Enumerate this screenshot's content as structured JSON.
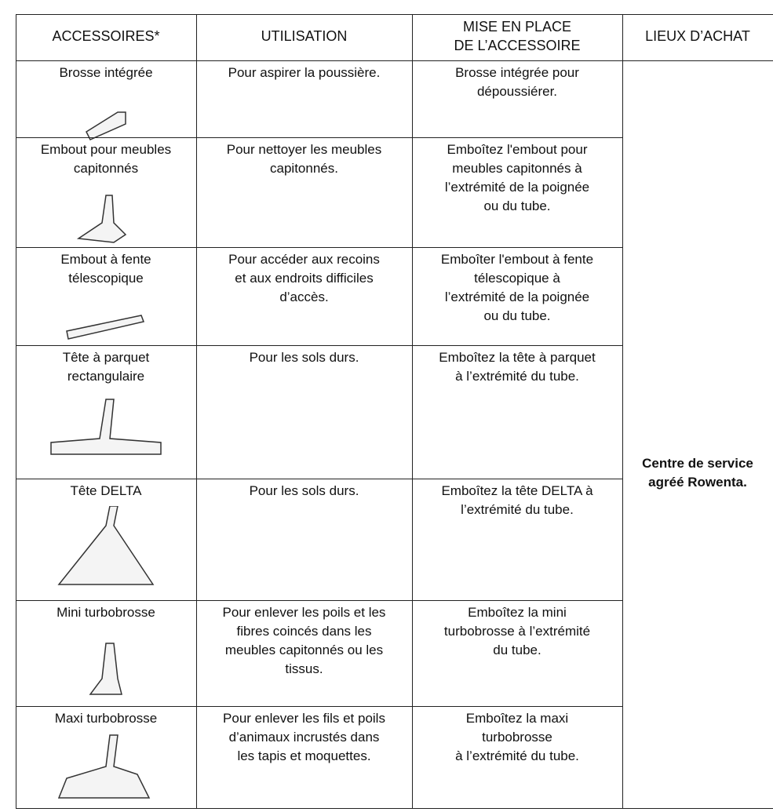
{
  "header": [
    [
      "ACCESSOIRES*"
    ],
    [
      "UTILISATION"
    ],
    [
      "MISE EN PLACE",
      "DE L’ACCESSOIRE"
    ],
    [
      "LIEUX D’ACHAT"
    ]
  ],
  "rows": [
    {
      "accessory": [
        "Brosse intégrée"
      ],
      "use": [
        "Pour aspirer la poussière."
      ],
      "setup": [
        "Brosse intégrée pour",
        "dépoussiérer."
      ]
    },
    {
      "accessory": [
        "Embout pour meubles",
        "capitonnés"
      ],
      "use": [
        "Pour nettoyer les meubles",
        "capitonnés."
      ],
      "setup": [
        "Emboîtez l'embout pour",
        "meubles capitonnés à",
        "l’extrémité de la poignée",
        "ou du tube."
      ]
    },
    {
      "accessory": [
        "Embout à fente",
        "télescopique"
      ],
      "use": [
        "Pour accéder aux recoins",
        "et aux endroits difficiles",
        "d’accès."
      ],
      "setup": [
        "Emboîter l'embout à fente",
        "télescopique à",
        "l’extrémité de la poignée",
        "ou du tube."
      ]
    },
    {
      "accessory": [
        "Tête à parquet",
        "rectangulaire"
      ],
      "use": [
        "Pour les sols durs."
      ],
      "setup": [
        "Emboîtez la tête à parquet",
        "à l’extrémité du tube."
      ]
    },
    {
      "accessory": [
        "Tête DELTA"
      ],
      "use": [
        "Pour les sols durs."
      ],
      "setup": [
        "Emboîtez la tête DELTA à",
        "l’extrémité du tube."
      ]
    },
    {
      "accessory": [
        "Mini turbobrosse"
      ],
      "use": [
        "Pour enlever les poils et les",
        "fibres coincés dans les",
        "meubles capitonnés ou les",
        "tissus."
      ],
      "setup": [
        "Emboîtez la mini",
        "turbobrosse à l’extrémité",
        "du tube."
      ]
    },
    {
      "accessory": [
        "Maxi turbobrosse"
      ],
      "use": [
        "Pour enlever les fils et poils",
        "d’animaux incrustés dans",
        "les tapis et moquettes."
      ],
      "setup": [
        "Emboîtez la maxi",
        "turbobrosse",
        "à l’extrémité du tube."
      ]
    }
  ],
  "purchase": [
    "Centre de service",
    "agréé Rowenta."
  ]
}
